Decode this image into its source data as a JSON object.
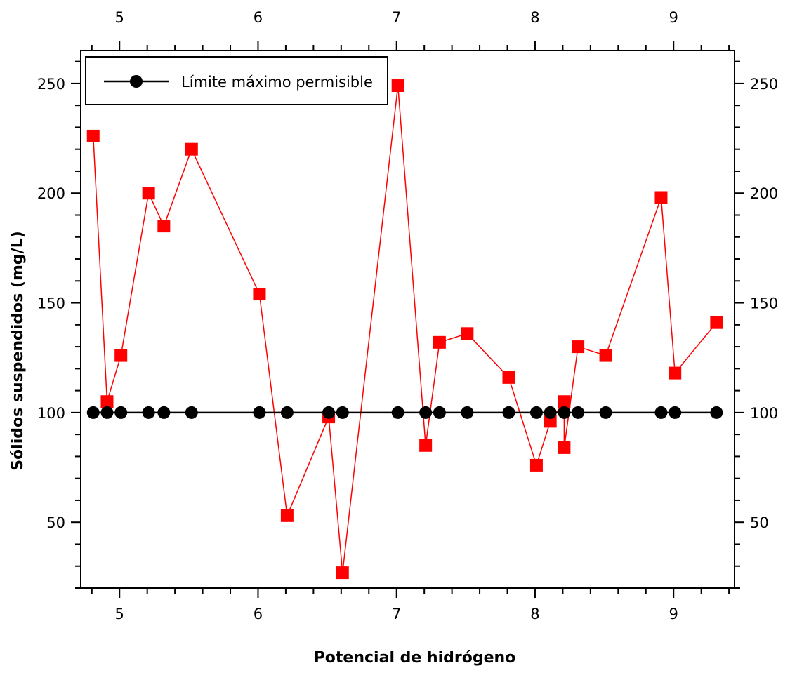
{
  "chart_data": {
    "type": "scatter",
    "title": "",
    "xlabel": "Potencial de hidrógeno",
    "ylabel": "Sólidos suspendidos (mg/L)",
    "xlim": [
      4.72,
      9.44
    ],
    "ylim": [
      20,
      265
    ],
    "x_ticks": [
      5,
      6,
      7,
      8,
      9
    ],
    "y_ticks": [
      50,
      100,
      150,
      200,
      250
    ],
    "x_tick_labels": [
      "5",
      "6",
      "7",
      "8",
      "9"
    ],
    "y_tick_labels": [
      "50",
      "100",
      "150",
      "200",
      "250"
    ],
    "grid": false,
    "legend_position": "top-left",
    "series": [
      {
        "name": "",
        "type": "line-markers",
        "marker": "square",
        "color": "#ff0000",
        "x": [
          4.81,
          4.91,
          5.01,
          5.21,
          5.32,
          5.52,
          6.01,
          6.21,
          6.51,
          6.61,
          7.01,
          7.21,
          7.31,
          7.51,
          7.81,
          8.01,
          8.11,
          8.21,
          8.21,
          8.31,
          8.51,
          8.91,
          9.01,
          9.31
        ],
        "y": [
          226,
          105,
          126,
          200,
          185,
          220,
          154,
          53,
          98,
          27,
          249,
          85,
          132,
          136,
          116,
          76,
          96,
          105,
          84,
          130,
          126,
          198,
          118,
          141
        ]
      },
      {
        "name": "Límite máximo permisible",
        "type": "line-markers",
        "marker": "circle",
        "color": "#000000",
        "x": [
          4.81,
          4.91,
          5.01,
          5.21,
          5.32,
          5.52,
          6.01,
          6.21,
          6.51,
          6.61,
          7.01,
          7.21,
          7.31,
          7.51,
          7.81,
          8.01,
          8.11,
          8.21,
          8.31,
          8.51,
          8.91,
          9.01,
          9.31
        ],
        "y": [
          100,
          100,
          100,
          100,
          100,
          100,
          100,
          100,
          100,
          100,
          100,
          100,
          100,
          100,
          100,
          100,
          100,
          100,
          100,
          100,
          100,
          100,
          100
        ]
      }
    ]
  }
}
